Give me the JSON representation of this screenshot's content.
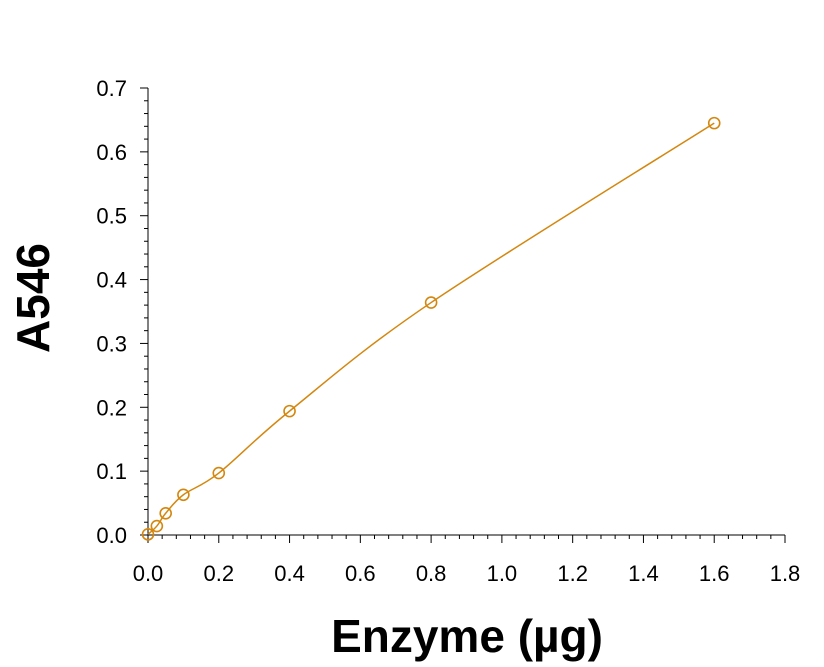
{
  "chart_data": {
    "type": "scatter",
    "xlabel": "Enzyme (µg)",
    "ylabel": "A546",
    "xlim": [
      0,
      1.8
    ],
    "ylim": [
      0,
      0.7
    ],
    "x_ticks": [
      0.0,
      0.2,
      0.4,
      0.6,
      0.8,
      1.0,
      1.2,
      1.4,
      1.6,
      1.8
    ],
    "y_ticks": [
      0.0,
      0.1,
      0.2,
      0.3,
      0.4,
      0.5,
      0.6,
      0.7
    ],
    "x_tick_labels": [
      "0.0",
      "0.2",
      "0.4",
      "0.6",
      "0.8",
      "1.0",
      "1.2",
      "1.4",
      "1.6",
      "1.8"
    ],
    "y_tick_labels": [
      "0.0",
      "0.1",
      "0.2",
      "0.3",
      "0.4",
      "0.5",
      "0.6",
      "0.7"
    ],
    "grid": false,
    "series": [
      {
        "color": "#d4870f",
        "marker": "open-circle",
        "fit_line": true,
        "x": [
          0.0,
          0.025,
          0.05,
          0.1,
          0.2,
          0.4,
          0.8,
          1.6
        ],
        "y": [
          0.001,
          0.014,
          0.034,
          0.063,
          0.097,
          0.194,
          0.364,
          0.645
        ]
      }
    ]
  }
}
